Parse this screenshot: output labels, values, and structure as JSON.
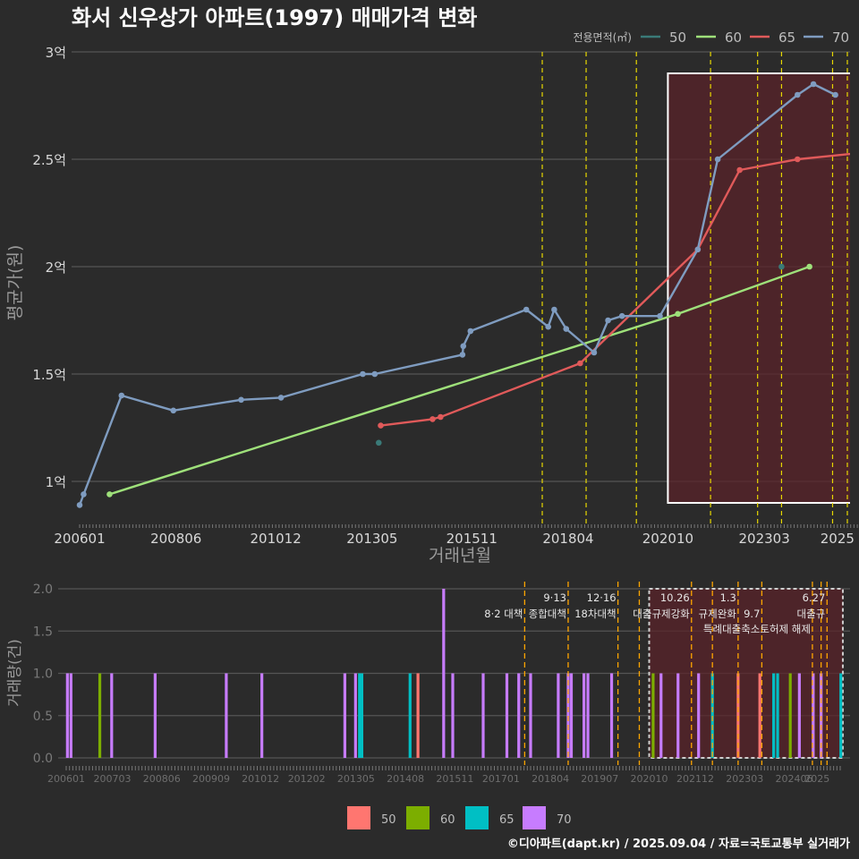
{
  "title": "화서 신우상가 아파트(1997) 매매가격 변화",
  "source": "©디아파트(dapt.kr) / 2025.09.04 / 자료=국토교통부 실거래가",
  "colors": {
    "background": "#2b2b2b",
    "grid": "#555555",
    "policy_line": "#e8d800",
    "highlight_fill": "#5a2329",
    "s50": "#3a7a78",
    "s60": "#9ee07a",
    "s65": "#e05a5a",
    "s70": "#7f9cc0",
    "b50": "#ff7670",
    "b60": "#7cae00",
    "b65": "#00bfc4",
    "b70": "#c77cff"
  },
  "chart_data": [
    {
      "type": "line",
      "title": "화서 신우상가 아파트(1997) 매매가격 변화",
      "xlabel": "거래년월",
      "ylabel": "평균가(원)",
      "x_ticks": [
        "200601",
        "200806",
        "201012",
        "201305",
        "201511",
        "201804",
        "202010",
        "202303",
        "2025"
      ],
      "y_ticks": [
        "1억",
        "1.5억",
        "2억",
        "2.5억",
        "3억"
      ],
      "ylim": [
        0.8,
        3.0
      ],
      "y_unit": "억",
      "legend_title": "전용면적(㎡)",
      "legend_position": "top-right",
      "series": [
        {
          "name": "50",
          "points": [
            [
              2013.5,
              1.18
            ],
            [
              2023.6,
              2.0
            ]
          ]
        },
        {
          "name": "60",
          "points": [
            [
              2006.75,
              0.94
            ],
            [
              2021.0,
              1.78
            ],
            [
              2024.3,
              2.0
            ]
          ]
        },
        {
          "name": "65",
          "points": [
            [
              2013.55,
              1.26
            ],
            [
              2014.85,
              1.29
            ],
            [
              2015.05,
              1.3
            ],
            [
              2018.55,
              1.55
            ],
            [
              2021.5,
              2.08
            ],
            [
              2022.55,
              2.45
            ],
            [
              2024.0,
              2.5
            ],
            [
              2025.6,
              2.53
            ]
          ]
        },
        {
          "name": "70",
          "points": [
            [
              2006.0,
              0.89
            ],
            [
              2006.1,
              0.94
            ],
            [
              2007.05,
              1.4
            ],
            [
              2008.35,
              1.33
            ],
            [
              2010.05,
              1.38
            ],
            [
              2011.05,
              1.39
            ],
            [
              2013.1,
              1.5
            ],
            [
              2013.4,
              1.5
            ],
            [
              2015.6,
              1.59
            ],
            [
              2015.62,
              1.63
            ],
            [
              2015.8,
              1.7
            ],
            [
              2017.2,
              1.8
            ],
            [
              2017.75,
              1.72
            ],
            [
              2017.9,
              1.8
            ],
            [
              2018.2,
              1.71
            ],
            [
              2018.9,
              1.6
            ],
            [
              2019.25,
              1.75
            ],
            [
              2019.6,
              1.77
            ],
            [
              2020.55,
              1.77
            ],
            [
              2021.5,
              2.08
            ],
            [
              2022.0,
              2.5
            ],
            [
              2024.0,
              2.8
            ],
            [
              2024.4,
              2.85
            ],
            [
              2024.95,
              2.8
            ]
          ]
        }
      ],
      "policy_dates": [
        2017.6,
        2018.7,
        2019.96,
        2021.82,
        2023.0,
        2023.6,
        2024.88,
        2025.25
      ],
      "highlight_range": [
        2020.75,
        2025.65,
        0.9,
        2.9
      ]
    },
    {
      "type": "bar",
      "xlabel": "",
      "ylabel": "거래량(건)",
      "x_ticks": [
        "200601",
        "200703",
        "200806",
        "200909",
        "201012",
        "201202",
        "201305",
        "201408",
        "201511",
        "201701",
        "201804",
        "201907",
        "202010",
        "202112",
        "202303",
        "202406",
        "2025"
      ],
      "y_ticks": [
        "0.0",
        "0.5",
        "1.0",
        "1.5",
        "2.0"
      ],
      "ylim": [
        0,
        2.0
      ],
      "legend_position": "bottom",
      "series_names": [
        "50",
        "60",
        "65",
        "70"
      ],
      "bars": [
        {
          "x": 2006.03,
          "value": 1,
          "series": "70"
        },
        {
          "x": 2006.12,
          "value": 1,
          "series": "70"
        },
        {
          "x": 2006.85,
          "value": 1,
          "series": "60"
        },
        {
          "x": 2007.15,
          "value": 1,
          "series": "70"
        },
        {
          "x": 2008.25,
          "value": 1,
          "series": "70"
        },
        {
          "x": 2010.05,
          "value": 1,
          "series": "70"
        },
        {
          "x": 2010.95,
          "value": 1,
          "series": "70"
        },
        {
          "x": 2013.05,
          "value": 1,
          "series": "70"
        },
        {
          "x": 2013.32,
          "value": 1,
          "series": "70"
        },
        {
          "x": 2013.42,
          "value": 1,
          "series": "65"
        },
        {
          "x": 2013.48,
          "value": 1,
          "series": "65"
        },
        {
          "x": 2014.7,
          "value": 1,
          "series": "65"
        },
        {
          "x": 2014.9,
          "value": 1,
          "series": "50"
        },
        {
          "x": 2015.55,
          "value": 2,
          "series": "70"
        },
        {
          "x": 2015.78,
          "value": 1,
          "series": "70"
        },
        {
          "x": 2016.55,
          "value": 1,
          "series": "70"
        },
        {
          "x": 2017.15,
          "value": 1,
          "series": "70"
        },
        {
          "x": 2017.45,
          "value": 1,
          "series": "70"
        },
        {
          "x": 2017.75,
          "value": 1,
          "series": "70"
        },
        {
          "x": 2018.45,
          "value": 1,
          "series": "70"
        },
        {
          "x": 2018.7,
          "value": 1,
          "series": "70"
        },
        {
          "x": 2018.78,
          "value": 1,
          "series": "70"
        },
        {
          "x": 2019.1,
          "value": 1,
          "series": "70"
        },
        {
          "x": 2019.2,
          "value": 1,
          "series": "70"
        },
        {
          "x": 2019.8,
          "value": 1,
          "series": "70"
        },
        {
          "x": 2020.85,
          "value": 1,
          "series": "60"
        },
        {
          "x": 2021.05,
          "value": 1,
          "series": "70"
        },
        {
          "x": 2021.48,
          "value": 1,
          "series": "70"
        },
        {
          "x": 2022.0,
          "value": 1,
          "series": "70"
        },
        {
          "x": 2022.35,
          "value": 1,
          "series": "65"
        },
        {
          "x": 2023.0,
          "value": 1,
          "series": "50"
        },
        {
          "x": 2023.55,
          "value": 1,
          "series": "50"
        },
        {
          "x": 2023.9,
          "value": 1,
          "series": "65"
        },
        {
          "x": 2024.0,
          "value": 1,
          "series": "65"
        },
        {
          "x": 2024.32,
          "value": 1,
          "series": "60"
        },
        {
          "x": 2024.55,
          "value": 1,
          "series": "70"
        },
        {
          "x": 2024.9,
          "value": 1,
          "series": "70"
        },
        {
          "x": 2025.1,
          "value": 1,
          "series": "70"
        },
        {
          "x": 2025.6,
          "value": 1,
          "series": "65"
        }
      ],
      "policy_dates": [
        2017.6,
        2018.7,
        2019.96,
        2020.5,
        2021.82,
        2022.35,
        2023.0,
        2023.6,
        2024.88,
        2025.1,
        2025.25
      ],
      "highlight_range": [
        2020.75,
        2025.65
      ],
      "annotations": [
        {
          "x": 2017.6,
          "row": 1,
          "text": "8·2 대책"
        },
        {
          "x": 2018.7,
          "row": 0,
          "text": "9·13"
        },
        {
          "x": 2018.7,
          "row": 1,
          "text": "종합대책"
        },
        {
          "x": 2019.96,
          "row": 0,
          "text": "12·16"
        },
        {
          "x": 2019.96,
          "row": 1,
          "text": "18차대책"
        },
        {
          "x": 2021.82,
          "row": 0,
          "text": "10.26"
        },
        {
          "x": 2021.82,
          "row": 1,
          "text": "대출규제강화"
        },
        {
          "x": 2023.0,
          "row": 0,
          "text": "1.3"
        },
        {
          "x": 2023.0,
          "row": 1,
          "text": "규제완화"
        },
        {
          "x": 2023.6,
          "row": 1,
          "text": "9.7"
        },
        {
          "x": 2023.6,
          "row": 2,
          "text": "특례대출축소"
        },
        {
          "x": 2024.88,
          "row": 2,
          "text": "토허제 해제"
        },
        {
          "x": 2025.25,
          "row": 0,
          "text": "6.27"
        },
        {
          "x": 2025.25,
          "row": 1,
          "text": "대출규"
        }
      ]
    }
  ]
}
